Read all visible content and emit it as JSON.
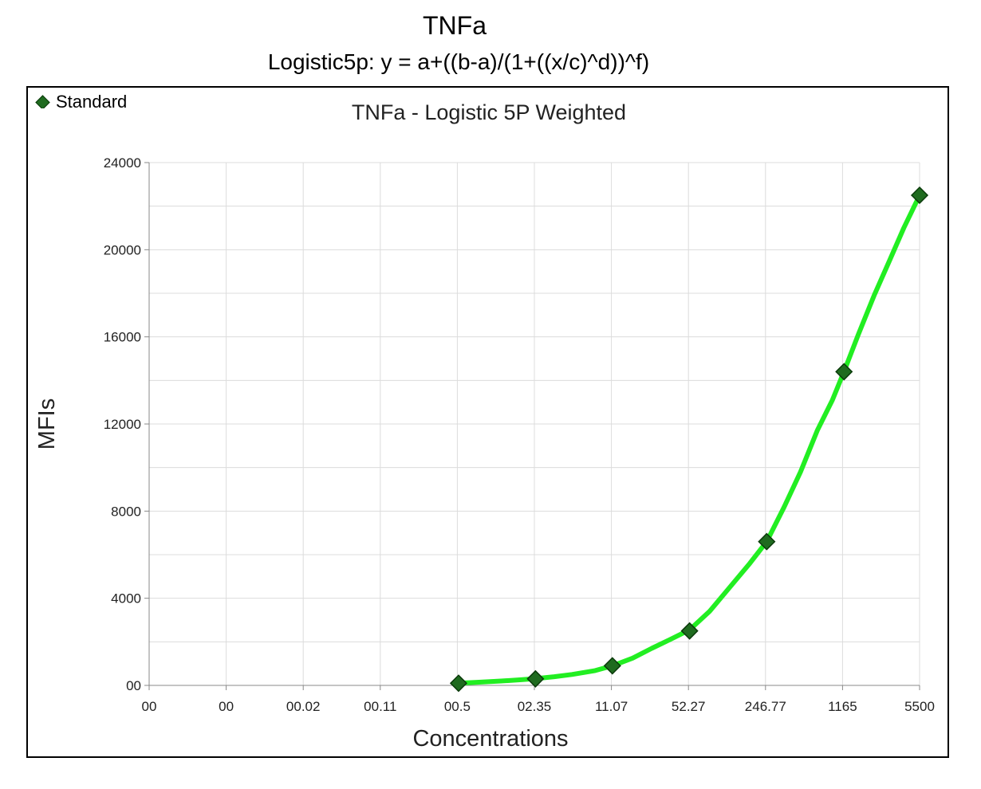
{
  "header": {
    "title": "TNFa",
    "subtitle": "Logistic5p: y = a+((b-a)/(1+((x/c)^d))^f)"
  },
  "chart_data": {
    "type": "line",
    "title": "TNFa - Logistic 5P Weighted",
    "xlabel": "Concentrations",
    "ylabel": "MFIs",
    "x_scale": "log",
    "x_tick_labels": [
      "00",
      "00",
      "00.02",
      "00.11",
      "00.5",
      "02.35",
      "11.07",
      "52.27",
      "246.77",
      "1165",
      "5500"
    ],
    "y_ticks": [
      0,
      4000,
      8000,
      12000,
      16000,
      20000,
      24000
    ],
    "y_tick_labels": [
      "00",
      "4000",
      "8000",
      "12000",
      "16000",
      "20000",
      "24000"
    ],
    "ylim": [
      0,
      24000
    ],
    "grid": true,
    "legend": {
      "position": "top-left",
      "entries": [
        "Standard"
      ]
    },
    "colors": {
      "curve": "#22ee22",
      "marker": "#1f6b1f",
      "marker_edge": "#0a3a0a",
      "grid": "#dcdcdc"
    },
    "series": [
      {
        "name": "Standard",
        "type": "scatter",
        "x": [
          5.1,
          24,
          113,
          535,
          2530,
          12000,
          55000
        ],
        "y": [
          100,
          300,
          900,
          2500,
          6600,
          14400,
          22500
        ]
      }
    ],
    "fit_curve": {
      "x": [
        5.1,
        8,
        12,
        18,
        24,
        35,
        50,
        80,
        113,
        170,
        250,
        360,
        535,
        800,
        1200,
        1800,
        2530,
        3600,
        5000,
        7000,
        9500,
        12000,
        16000,
        22000,
        30000,
        40000,
        55000
      ],
      "y": [
        100,
        150,
        200,
        260,
        310,
        400,
        500,
        680,
        900,
        1250,
        1700,
        2100,
        2550,
        3400,
        4500,
        5600,
        6600,
        8200,
        9800,
        11700,
        13100,
        14400,
        16100,
        17900,
        19500,
        21000,
        22500
      ]
    }
  }
}
